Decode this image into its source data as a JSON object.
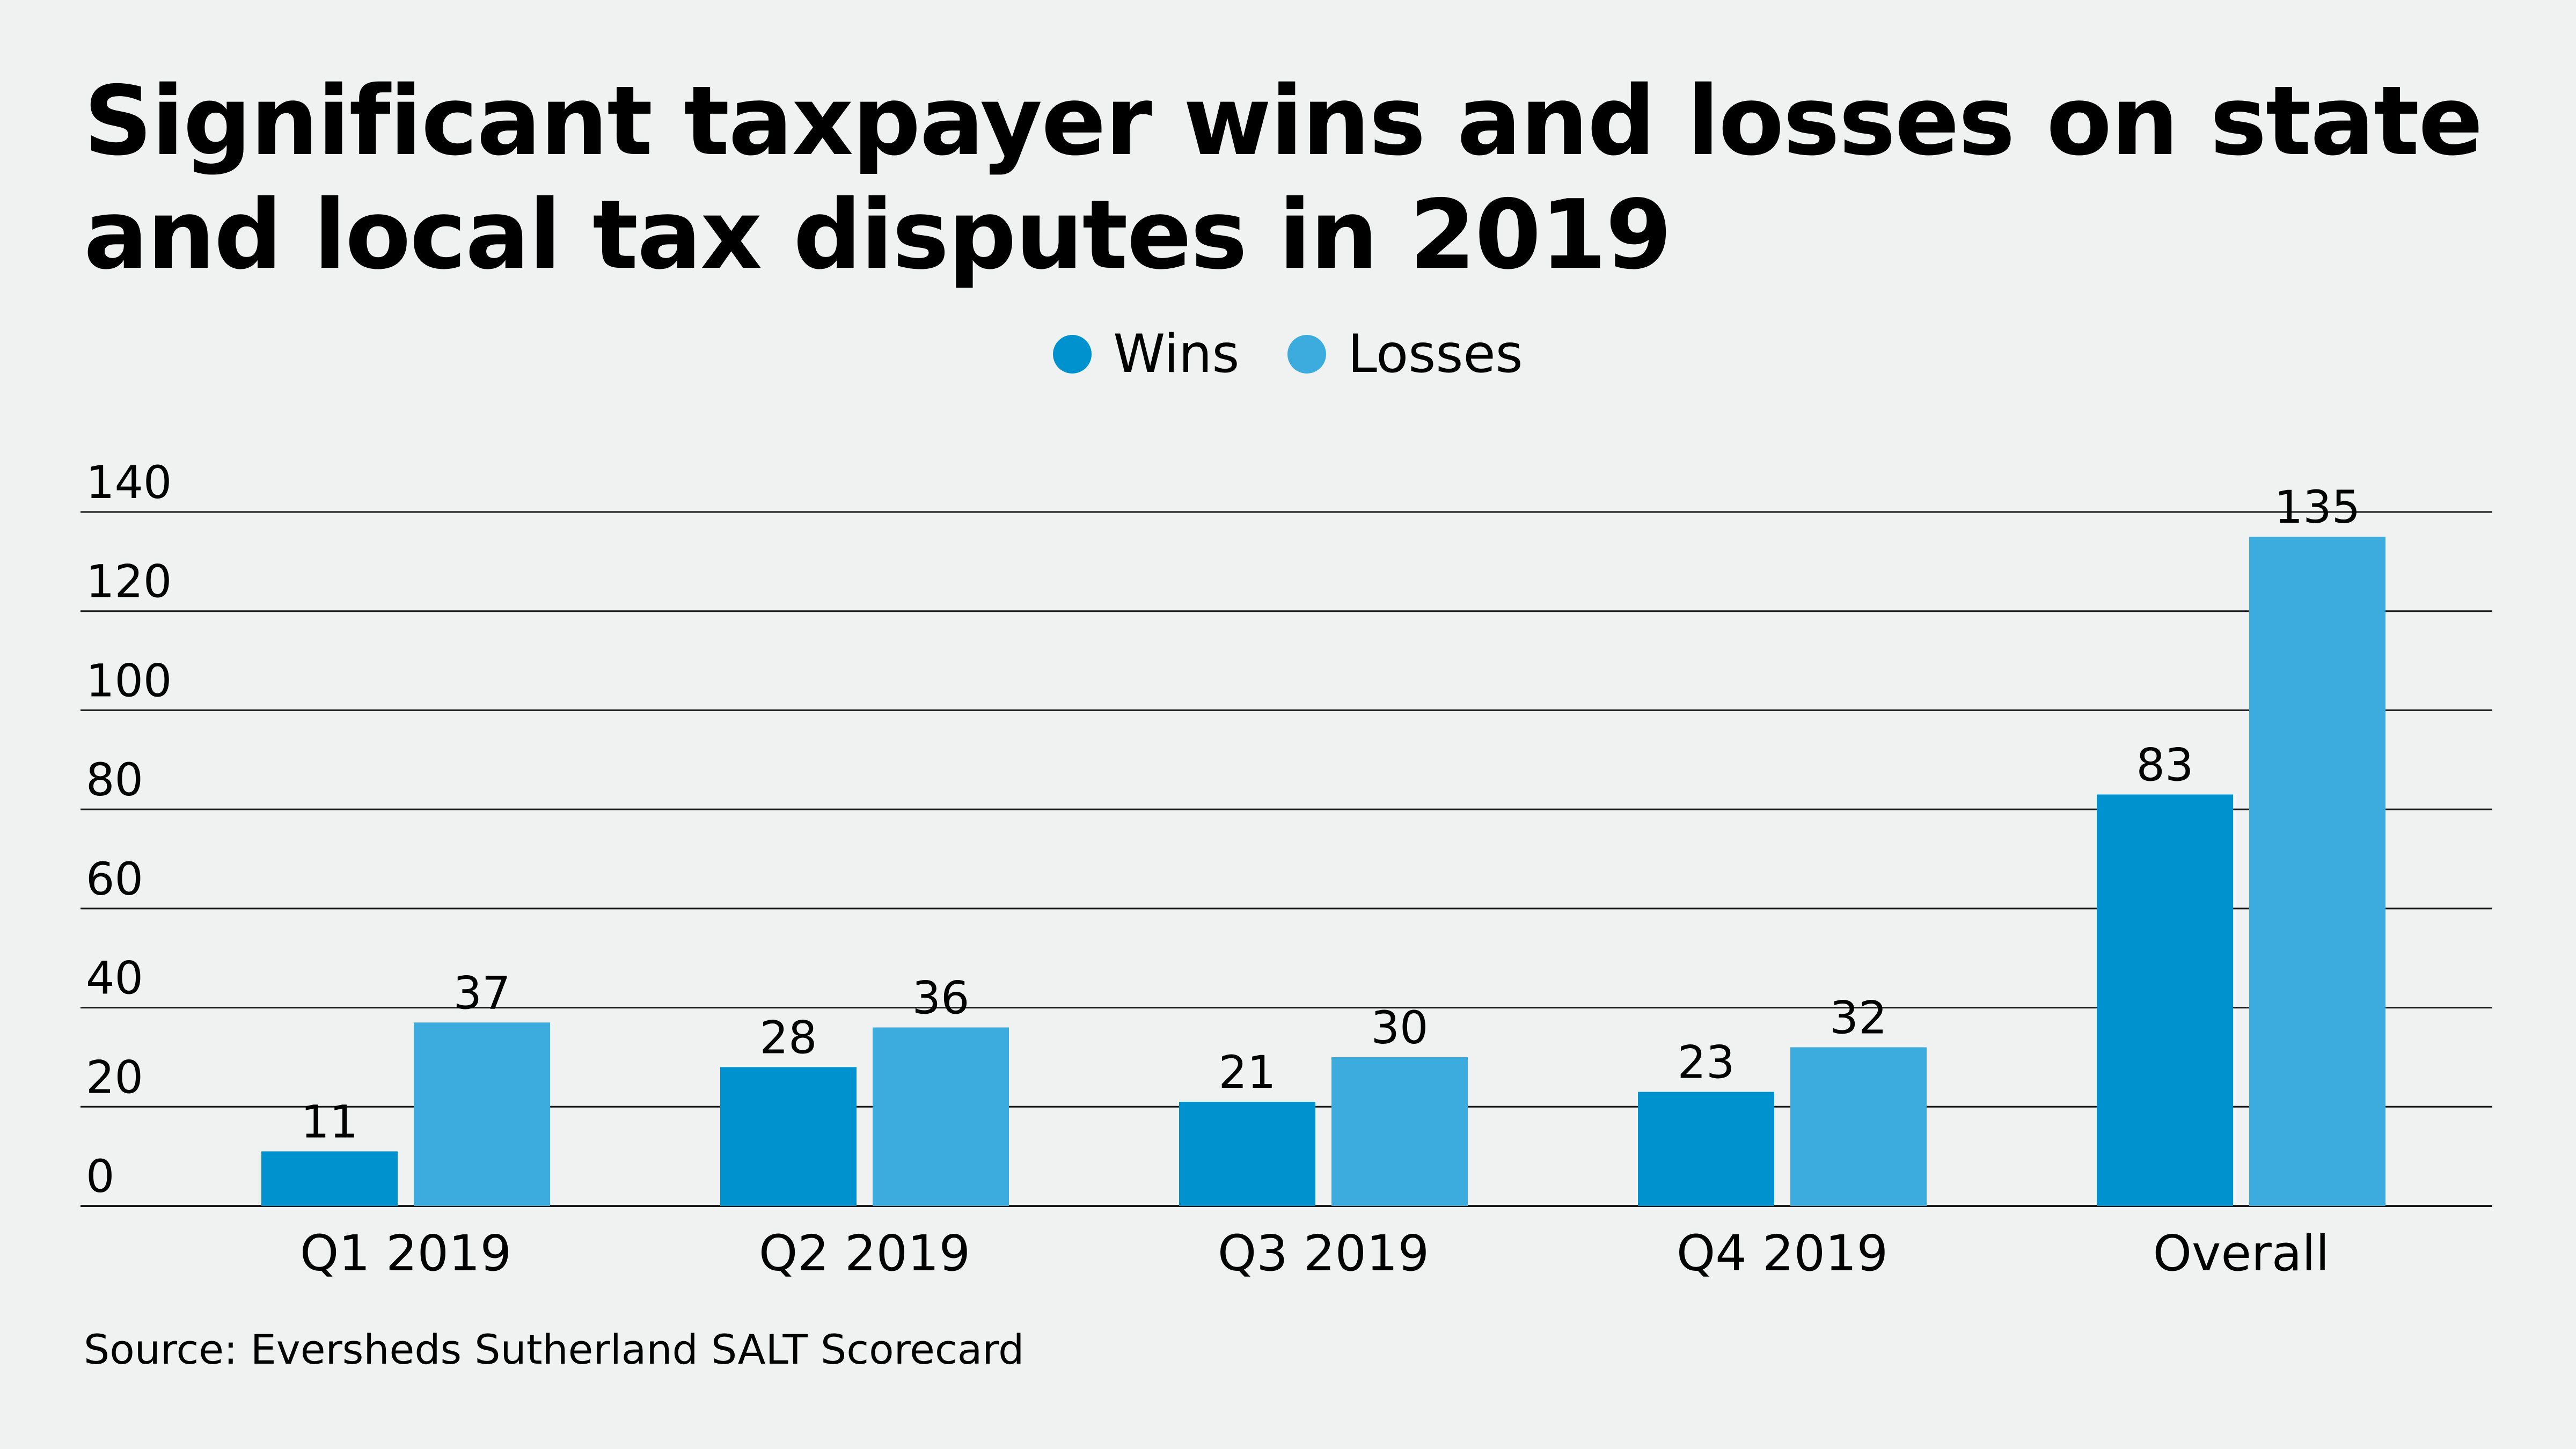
{
  "chart_data": {
    "type": "bar",
    "title": "Significant taxpayer wins and losses on state and local tax disputes in 2019",
    "categories": [
      "Q1 2019",
      "Q2 2019",
      "Q3 2019",
      "Q4 2019",
      "Overall"
    ],
    "series": [
      {
        "name": "Wins",
        "color": "#0092cf",
        "values": [
          11,
          28,
          21,
          23,
          83
        ]
      },
      {
        "name": "Losses",
        "color": "#3cacdf",
        "values": [
          37,
          36,
          30,
          32,
          135
        ]
      }
    ],
    "y_ticks": [
      "0",
      "20",
      "40",
      "60",
      "80",
      "100",
      "120",
      "140"
    ],
    "ylim": [
      0,
      140
    ],
    "grid": true,
    "legend_position": "top-center",
    "source": "Source: Eversheds Sutherland SALT Scorecard"
  }
}
